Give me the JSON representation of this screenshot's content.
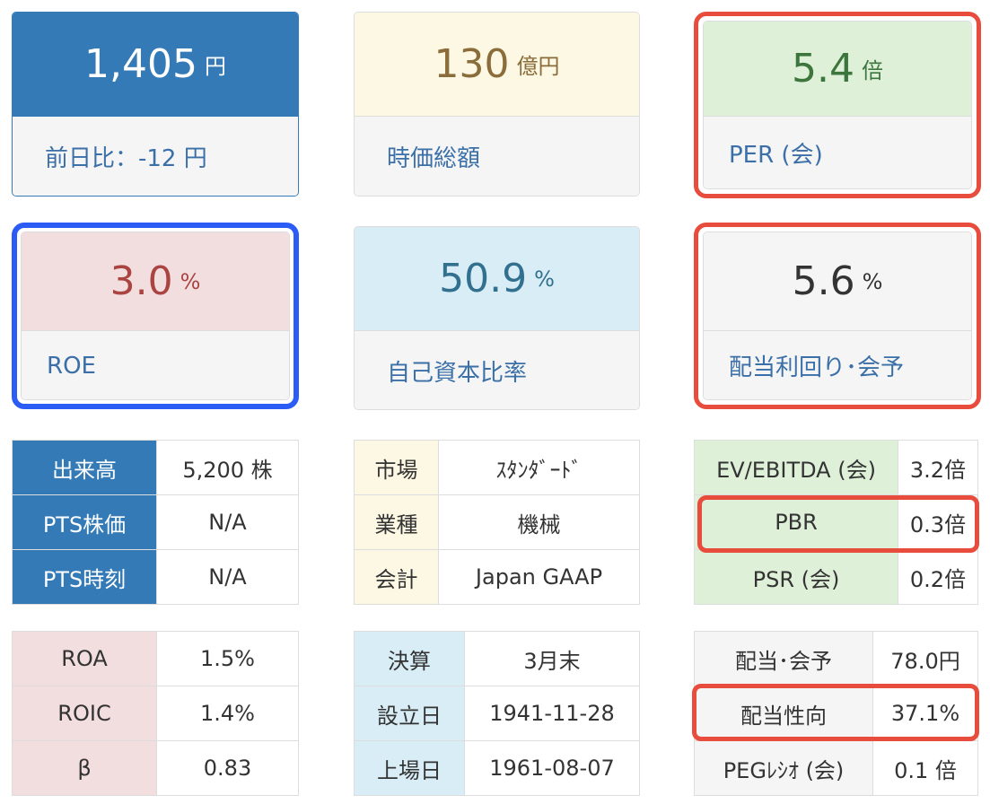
{
  "cards": {
    "price": {
      "value": "1,405",
      "unit": "円",
      "label": "前日比：-12 円"
    },
    "market_cap": {
      "value": "130",
      "unit": "億円",
      "label": "時価総額"
    },
    "per": {
      "value": "5.4",
      "unit": "倍",
      "label": "PER (会)"
    },
    "roe": {
      "value": "3.0",
      "unit": "%",
      "label": "ROE"
    },
    "equity_ratio": {
      "value": "50.9",
      "unit": "%",
      "label": "自己資本比率"
    },
    "dividend_yield": {
      "value": "5.6",
      "unit": "%",
      "label": "配当利回り･会予"
    }
  },
  "tables": {
    "volume": [
      {
        "key": "出来高",
        "value": "5,200 株"
      },
      {
        "key": "PTS株価",
        "value": "N/A"
      },
      {
        "key": "PTS時刻",
        "value": "N/A"
      }
    ],
    "market": [
      {
        "key": "市場",
        "value": "ｽﾀﾝﾀﾞｰﾄﾞ"
      },
      {
        "key": "業種",
        "value": "機械"
      },
      {
        "key": "会計",
        "value": "Japan GAAP"
      }
    ],
    "valuation": [
      {
        "key": "EV/EBITDA (会)",
        "value": "3.2倍"
      },
      {
        "key": "PBR",
        "value": "0.3倍"
      },
      {
        "key": "PSR (会)",
        "value": "0.2倍"
      }
    ],
    "returns": [
      {
        "key": "ROA",
        "value": "1.5%"
      },
      {
        "key": "ROIC",
        "value": "1.4%"
      },
      {
        "key": "β",
        "value": "0.83"
      }
    ],
    "dates": [
      {
        "key": "決算",
        "value": "3月末"
      },
      {
        "key": "設立日",
        "value": "1941-11-28"
      },
      {
        "key": "上場日",
        "value": "1961-08-07"
      }
    ],
    "dividend": [
      {
        "key": "配当･会予",
        "value": "78.0円"
      },
      {
        "key": "配当性向",
        "value": "37.1%"
      },
      {
        "key": "PEGﾚｼｵ (会)",
        "value": "0.1 倍"
      }
    ]
  },
  "colors": {
    "primary": "#337ab7",
    "warning_bg": "#fcf8e3",
    "success_bg": "#dff0d8",
    "danger_bg": "#f2dede",
    "info_bg": "#d9edf7",
    "highlight_red": "#e74c3c",
    "highlight_blue": "#2b5cf5"
  }
}
